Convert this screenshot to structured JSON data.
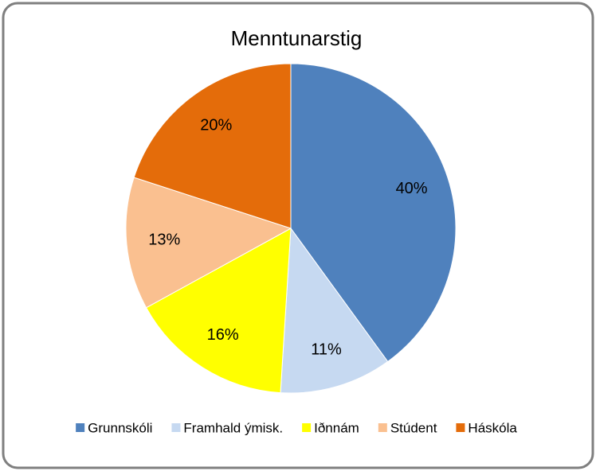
{
  "chart_data": {
    "type": "pie",
    "title": "Menntunarstig",
    "categories": [
      "Grunnskóli",
      "Framhald ýmisk.",
      "Iðnnám",
      "Stúdent",
      "Háskóla"
    ],
    "values": [
      40,
      11,
      16,
      13,
      20
    ],
    "value_labels": [
      "40%",
      "11%",
      "16%",
      "13%",
      "20%"
    ],
    "colors": [
      "#4f81bd",
      "#c6d9f1",
      "#ffff00",
      "#fac090",
      "#e46c0a"
    ],
    "legend": "bottom"
  }
}
